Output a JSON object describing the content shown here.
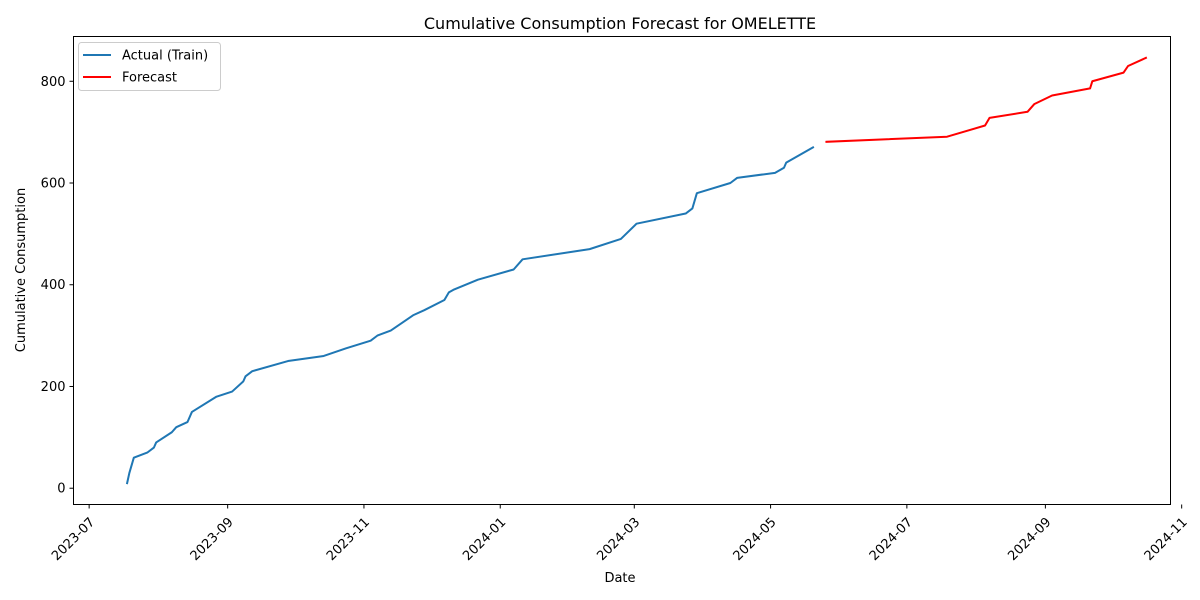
{
  "chart_data": {
    "type": "line",
    "title": "Cumulative Consumption Forecast for OMELETTE",
    "xlabel": "Date",
    "ylabel": "Cumulative Consumption",
    "xlim": [
      "2023-06-24",
      "2024-10-27"
    ],
    "ylim": [
      -32,
      888
    ],
    "grid": false,
    "legend_position": "top-left",
    "x_ticks": [
      "2023-07",
      "2023-09",
      "2023-11",
      "2024-01",
      "2024-03",
      "2024-05",
      "2024-07",
      "2024-09",
      "2024-11"
    ],
    "y_ticks": [
      0,
      200,
      400,
      600,
      800
    ],
    "series": [
      {
        "name": "Actual (Train)",
        "color": "#1f77b4",
        "points": [
          [
            "2023-07-18",
            10
          ],
          [
            "2023-07-19",
            30
          ],
          [
            "2023-07-21",
            60
          ],
          [
            "2023-07-27",
            70
          ],
          [
            "2023-07-30",
            80
          ],
          [
            "2023-07-31",
            90
          ],
          [
            "2023-08-07",
            110
          ],
          [
            "2023-08-09",
            120
          ],
          [
            "2023-08-14",
            130
          ],
          [
            "2023-08-16",
            150
          ],
          [
            "2023-08-27",
            180
          ],
          [
            "2023-09-03",
            190
          ],
          [
            "2023-09-08",
            210
          ],
          [
            "2023-09-09",
            220
          ],
          [
            "2023-09-12",
            230
          ],
          [
            "2023-09-28",
            250
          ],
          [
            "2023-10-14",
            260
          ],
          [
            "2023-10-24",
            275
          ],
          [
            "2023-11-04",
            290
          ],
          [
            "2023-11-07",
            300
          ],
          [
            "2023-11-13",
            310
          ],
          [
            "2023-11-18",
            325
          ],
          [
            "2023-11-23",
            340
          ],
          [
            "2023-11-28",
            350
          ],
          [
            "2023-12-07",
            370
          ],
          [
            "2023-12-09",
            385
          ],
          [
            "2023-12-11",
            390
          ],
          [
            "2023-12-22",
            410
          ],
          [
            "2024-01-07",
            430
          ],
          [
            "2024-01-11",
            450
          ],
          [
            "2024-02-10",
            470
          ],
          [
            "2024-02-24",
            490
          ],
          [
            "2024-03-02",
            520
          ],
          [
            "2024-03-24",
            540
          ],
          [
            "2024-03-27",
            550
          ],
          [
            "2024-03-29",
            580
          ],
          [
            "2024-04-13",
            600
          ],
          [
            "2024-04-16",
            610
          ],
          [
            "2024-05-03",
            620
          ],
          [
            "2024-05-07",
            630
          ],
          [
            "2024-05-08",
            640
          ],
          [
            "2024-05-20",
            670
          ]
        ]
      },
      {
        "name": "Forecast",
        "color": "#ff0000",
        "points": [
          [
            "2024-05-26",
            681
          ],
          [
            "2024-07-19",
            691
          ],
          [
            "2024-08-05",
            713
          ],
          [
            "2024-08-07",
            728
          ],
          [
            "2024-08-24",
            740
          ],
          [
            "2024-08-27",
            755
          ],
          [
            "2024-09-04",
            772
          ],
          [
            "2024-09-21",
            786
          ],
          [
            "2024-09-22",
            800
          ],
          [
            "2024-10-06",
            817
          ],
          [
            "2024-10-08",
            830
          ],
          [
            "2024-10-16",
            846
          ]
        ]
      }
    ]
  }
}
